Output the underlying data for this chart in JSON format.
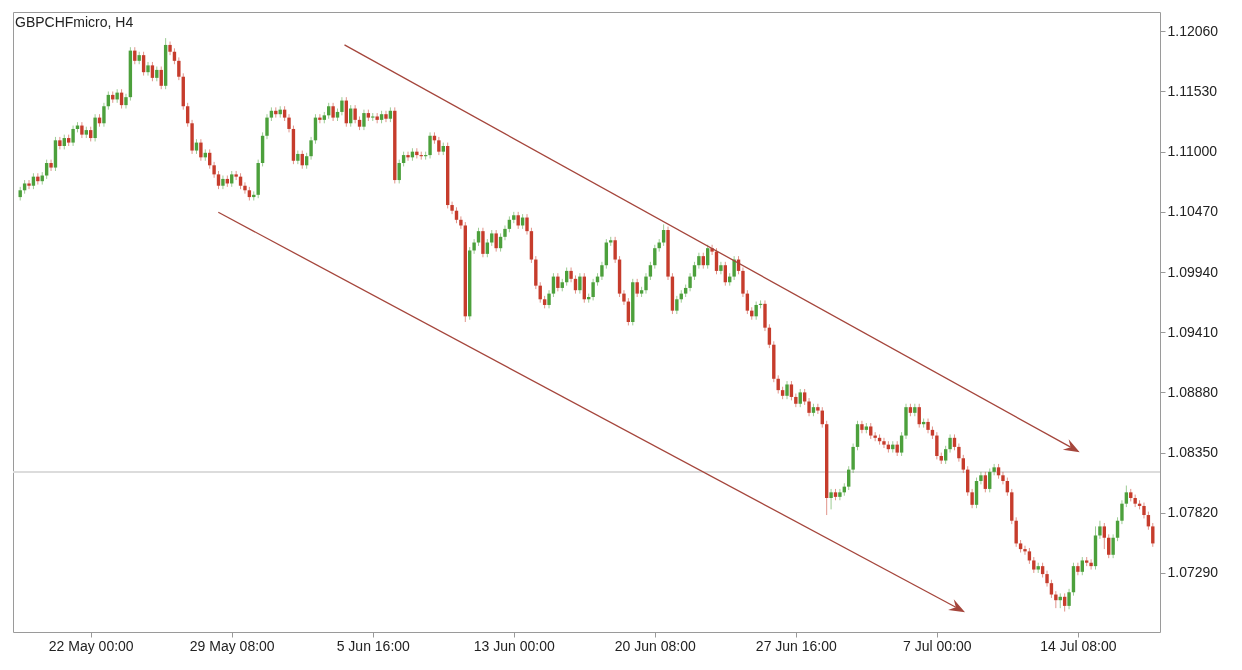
{
  "chart_data": {
    "type": "candlestick",
    "title": "GBPCHFmicro, H4",
    "categories": [
      null,
      null,
      null,
      null,
      null,
      null,
      null,
      null,
      null,
      null,
      null,
      null,
      null,
      null,
      null,
      null,
      "22 May 00:00",
      null,
      null,
      null,
      null,
      null,
      null,
      null,
      null,
      null,
      null,
      null,
      null,
      null,
      null,
      null,
      null,
      null,
      null,
      null,
      null,
      null,
      null,
      null,
      null,
      null,
      null,
      null,
      null,
      null,
      null,
      null,
      "29 May 08:00",
      null,
      null,
      null,
      null,
      null,
      null,
      null,
      null,
      null,
      null,
      null,
      null,
      null,
      null,
      null,
      null,
      null,
      null,
      null,
      null,
      null,
      null,
      null,
      null,
      null,
      null,
      null,
      null,
      null,
      null,
      null,
      "5 Jun 16:00",
      null,
      null,
      null,
      null,
      null,
      null,
      null,
      null,
      null,
      null,
      null,
      null,
      null,
      null,
      null,
      null,
      null,
      null,
      null,
      null,
      null,
      null,
      null,
      null,
      null,
      null,
      null,
      null,
      null,
      null,
      null,
      "13 Jun 00:00",
      null,
      null,
      null,
      null,
      null,
      null,
      null,
      null,
      null,
      null,
      null,
      null,
      null,
      null,
      null,
      null,
      null,
      null,
      null,
      null,
      null,
      null,
      null,
      null,
      null,
      null,
      null,
      null,
      null,
      null,
      null,
      "20 Jun 08:00",
      null,
      null,
      null,
      null,
      null,
      null,
      null,
      null,
      null,
      null,
      null,
      null,
      null,
      null,
      null,
      null,
      null,
      null,
      null,
      null,
      null,
      null,
      null,
      null,
      null,
      null,
      null,
      null,
      null,
      null,
      null,
      "27 Jun 16:00",
      null,
      null,
      null,
      null,
      null,
      null,
      null,
      null,
      null,
      null,
      null,
      null,
      null,
      null,
      null,
      null,
      null,
      null,
      null,
      null,
      null,
      null,
      null,
      null,
      null,
      null,
      null,
      null,
      null,
      null,
      null,
      "7 Jul 00:00",
      null,
      null,
      null,
      null,
      null,
      null,
      null,
      null,
      null,
      null,
      null,
      null,
      null,
      null,
      null,
      null,
      null,
      null,
      null,
      null,
      null,
      null,
      null,
      null,
      null,
      null,
      null,
      null,
      null,
      null,
      null,
      "14 Jul 08:00",
      null,
      null,
      null,
      null,
      null,
      null,
      null,
      null,
      null,
      null,
      null,
      null,
      null,
      null,
      null,
      null,
      null
    ],
    "ohlc": [
      [
        1.106,
        1.1069,
        1.1057,
        1.1066
      ],
      [
        1.1066,
        1.1075,
        1.1063,
        1.1072
      ],
      [
        1.1072,
        1.1075,
        1.1067,
        1.107
      ],
      [
        1.107,
        1.1081,
        1.1067,
        1.1078
      ],
      [
        1.1078,
        1.1081,
        1.1071,
        1.1074
      ],
      [
        1.1074,
        1.1082,
        1.1071,
        1.1079
      ],
      [
        1.1079,
        1.1093,
        1.1076,
        1.109
      ],
      [
        1.109,
        1.1093,
        1.1083,
        1.1086
      ],
      [
        1.1086,
        1.1113,
        1.1083,
        1.111
      ],
      [
        1.111,
        1.1113,
        1.1102,
        1.1105
      ],
      [
        1.1105,
        1.1115,
        1.1102,
        1.1112
      ],
      [
        1.1112,
        1.1115,
        1.1105,
        1.1108
      ],
      [
        1.1108,
        1.1123,
        1.1105,
        1.112
      ],
      [
        1.112,
        1.1126,
        1.1117,
        1.1123
      ],
      [
        1.1123,
        1.1126,
        1.1112,
        1.1115
      ],
      [
        1.1115,
        1.1122,
        1.1112,
        1.1119
      ],
      [
        1.1119,
        1.1122,
        1.1109,
        1.1112
      ],
      [
        1.1112,
        1.1133,
        1.1109,
        1.113
      ],
      [
        1.113,
        1.1133,
        1.1122,
        1.1125
      ],
      [
        1.1125,
        1.1143,
        1.1122,
        1.114
      ],
      [
        1.114,
        1.1153,
        1.1137,
        1.115
      ],
      [
        1.115,
        1.1153,
        1.1143,
        1.1146
      ],
      [
        1.1146,
        1.1155,
        1.1143,
        1.1152
      ],
      [
        1.1152,
        1.1155,
        1.1138,
        1.1141
      ],
      [
        1.1141,
        1.1151,
        1.1138,
        1.1148
      ],
      [
        1.1148,
        1.1192,
        1.1145,
        1.1189
      ],
      [
        1.1189,
        1.1192,
        1.1177,
        1.118
      ],
      [
        1.118,
        1.1188,
        1.1177,
        1.1185
      ],
      [
        1.1185,
        1.1188,
        1.1167,
        1.117
      ],
      [
        1.117,
        1.1179,
        1.1167,
        1.1176
      ],
      [
        1.1176,
        1.1179,
        1.1162,
        1.1165
      ],
      [
        1.1165,
        1.1175,
        1.1162,
        1.1172
      ],
      [
        1.1172,
        1.1175,
        1.1155,
        1.1158
      ],
      [
        1.1158,
        1.12,
        1.1155,
        1.1194
      ],
      [
        1.1194,
        1.1197,
        1.1185,
        1.1188
      ],
      [
        1.1188,
        1.1191,
        1.1177,
        1.118
      ],
      [
        1.118,
        1.1183,
        1.1163,
        1.1166
      ],
      [
        1.1166,
        1.1169,
        1.1137,
        1.114
      ],
      [
        1.114,
        1.1143,
        1.1122,
        1.1125
      ],
      [
        1.1125,
        1.1128,
        1.1098,
        1.1101
      ],
      [
        1.1101,
        1.1111,
        1.1098,
        1.1108
      ],
      [
        1.1108,
        1.1111,
        1.1092,
        1.1095
      ],
      [
        1.1095,
        1.1102,
        1.1092,
        1.1099
      ],
      [
        1.1099,
        1.1102,
        1.1085,
        1.1088
      ],
      [
        1.1088,
        1.1091,
        1.1077,
        1.108
      ],
      [
        1.108,
        1.1083,
        1.1067,
        1.107
      ],
      [
        1.107,
        1.1079,
        1.1067,
        1.1076
      ],
      [
        1.1076,
        1.1079,
        1.1069,
        1.1072
      ],
      [
        1.1072,
        1.1083,
        1.1069,
        1.108
      ],
      [
        1.108,
        1.1083,
        1.1075,
        1.1078
      ],
      [
        1.1078,
        1.1081,
        1.1067,
        1.107
      ],
      [
        1.107,
        1.1073,
        1.1063,
        1.1066
      ],
      [
        1.1066,
        1.1069,
        1.1057,
        1.106
      ],
      [
        1.106,
        1.1065,
        1.1057,
        1.1062
      ],
      [
        1.1062,
        1.1093,
        1.1059,
        1.109
      ],
      [
        1.109,
        1.1117,
        1.1087,
        1.1114
      ],
      [
        1.1114,
        1.1133,
        1.1111,
        1.113
      ],
      [
        1.113,
        1.1139,
        1.1127,
        1.1136
      ],
      [
        1.1136,
        1.1139,
        1.113,
        1.1133
      ],
      [
        1.1133,
        1.114,
        1.113,
        1.1137
      ],
      [
        1.1137,
        1.114,
        1.1127,
        1.113
      ],
      [
        1.113,
        1.1133,
        1.1117,
        1.112
      ],
      [
        1.112,
        1.1123,
        1.1089,
        1.1092
      ],
      [
        1.1092,
        1.1101,
        1.1089,
        1.1098
      ],
      [
        1.1098,
        1.1101,
        1.1085,
        1.1088
      ],
      [
        1.1088,
        1.1099,
        1.1085,
        1.1096
      ],
      [
        1.1096,
        1.1113,
        1.1093,
        1.111
      ],
      [
        1.111,
        1.1133,
        1.1107,
        1.113
      ],
      [
        1.113,
        1.1133,
        1.1125,
        1.1128
      ],
      [
        1.1128,
        1.1135,
        1.1125,
        1.1132
      ],
      [
        1.1132,
        1.1143,
        1.1129,
        1.114
      ],
      [
        1.114,
        1.1143,
        1.1127,
        1.113
      ],
      [
        1.113,
        1.1138,
        1.1127,
        1.1135
      ],
      [
        1.1135,
        1.1148,
        1.1132,
        1.1145
      ],
      [
        1.1145,
        1.1148,
        1.1122,
        1.1125
      ],
      [
        1.1125,
        1.1141,
        1.1122,
        1.1138
      ],
      [
        1.1138,
        1.1141,
        1.1125,
        1.1128
      ],
      [
        1.1128,
        1.1131,
        1.1119,
        1.1122
      ],
      [
        1.1122,
        1.1137,
        1.1119,
        1.1134
      ],
      [
        1.1134,
        1.1137,
        1.1127,
        1.113
      ],
      [
        1.113,
        1.1134,
        1.1127,
        1.1131
      ],
      [
        1.1131,
        1.1134,
        1.1125,
        1.1128
      ],
      [
        1.1128,
        1.1136,
        1.1125,
        1.1133
      ],
      [
        1.1133,
        1.1136,
        1.1126,
        1.1129
      ],
      [
        1.1129,
        1.1139,
        1.1126,
        1.1136
      ],
      [
        1.1136,
        1.1139,
        1.1072,
        1.1075
      ],
      [
        1.1075,
        1.1093,
        1.1072,
        1.109
      ],
      [
        1.109,
        1.11,
        1.1087,
        1.1097
      ],
      [
        1.1097,
        1.11,
        1.1092,
        1.1095
      ],
      [
        1.1095,
        1.1103,
        1.1092,
        1.11
      ],
      [
        1.11,
        1.1103,
        1.1094,
        1.1097
      ],
      [
        1.1097,
        1.11,
        1.1093,
        1.1096
      ],
      [
        1.1096,
        1.11,
        1.1093,
        1.1097
      ],
      [
        1.1097,
        1.1117,
        1.1094,
        1.1114
      ],
      [
        1.1114,
        1.1117,
        1.1107,
        1.111
      ],
      [
        1.111,
        1.1113,
        1.1097,
        1.11
      ],
      [
        1.11,
        1.1108,
        1.1097,
        1.1105
      ],
      [
        1.1105,
        1.1108,
        1.105,
        1.1053
      ],
      [
        1.1053,
        1.1056,
        1.1045,
        1.1048
      ],
      [
        1.1048,
        1.1051,
        1.1037,
        1.104
      ],
      [
        1.104,
        1.1043,
        1.1032,
        1.1035
      ],
      [
        1.1035,
        1.1038,
        1.095,
        1.0955
      ],
      [
        1.0955,
        1.1016,
        1.0952,
        1.1013
      ],
      [
        1.1013,
        1.1023,
        1.101,
        1.102
      ],
      [
        1.102,
        1.1033,
        1.1017,
        1.103
      ],
      [
        1.103,
        1.1033,
        1.1007,
        1.101
      ],
      [
        1.101,
        1.1023,
        1.1007,
        1.102
      ],
      [
        1.102,
        1.1031,
        1.1017,
        1.1028
      ],
      [
        1.1028,
        1.1031,
        1.1012,
        1.1015
      ],
      [
        1.1015,
        1.1028,
        1.1012,
        1.1025
      ],
      [
        1.1025,
        1.1035,
        1.1022,
        1.1032
      ],
      [
        1.1032,
        1.1043,
        1.1029,
        1.104
      ],
      [
        1.104,
        1.1047,
        1.1037,
        1.1044
      ],
      [
        1.1044,
        1.1047,
        1.1032,
        1.1035
      ],
      [
        1.1035,
        1.1045,
        1.1032,
        1.1042
      ],
      [
        1.1042,
        1.1045,
        1.1027,
        1.103
      ],
      [
        1.103,
        1.1033,
        1.1002,
        1.1005
      ],
      [
        1.1005,
        1.1008,
        1.0979,
        1.0982
      ],
      [
        1.0982,
        1.0985,
        1.0967,
        1.097
      ],
      [
        1.097,
        1.0973,
        1.0962,
        1.0965
      ],
      [
        1.0965,
        1.0978,
        1.0962,
        1.0975
      ],
      [
        1.0975,
        1.0993,
        1.0972,
        1.099
      ],
      [
        1.099,
        1.0993,
        1.0977,
        1.098
      ],
      [
        1.098,
        1.0988,
        1.0977,
        1.0985
      ],
      [
        1.0985,
        1.0998,
        1.0982,
        1.0995
      ],
      [
        1.0995,
        1.0998,
        1.0985,
        1.0988
      ],
      [
        1.0988,
        1.0991,
        1.0975,
        1.0978
      ],
      [
        1.0978,
        1.0993,
        1.0975,
        1.099
      ],
      [
        1.099,
        1.0993,
        1.0967,
        1.097
      ],
      [
        1.097,
        1.0975,
        1.0967,
        1.0972
      ],
      [
        1.0972,
        1.0988,
        1.0969,
        1.0985
      ],
      [
        1.0985,
        1.0993,
        1.0982,
        1.099
      ],
      [
        1.099,
        1.1003,
        1.0987,
        1.1
      ],
      [
        1.1,
        1.1023,
        1.0997,
        1.102
      ],
      [
        1.102,
        1.1025,
        1.1017,
        1.1022
      ],
      [
        1.1022,
        1.1025,
        1.1002,
        1.1005
      ],
      [
        1.1005,
        1.1008,
        1.0972,
        1.0975
      ],
      [
        1.0975,
        1.0978,
        1.0965,
        1.0968
      ],
      [
        1.0968,
        1.0971,
        1.0947,
        1.095
      ],
      [
        1.095,
        1.0988,
        1.0947,
        1.0985
      ],
      [
        1.0985,
        1.0988,
        1.0972,
        1.0975
      ],
      [
        1.0975,
        1.0981,
        1.0972,
        1.0978
      ],
      [
        1.0978,
        1.0993,
        1.0975,
        1.099
      ],
      [
        1.099,
        1.1003,
        1.0987,
        1.1
      ],
      [
        1.1,
        1.1018,
        1.0997,
        1.1015
      ],
      [
        1.1015,
        1.1023,
        1.1012,
        1.102
      ],
      [
        1.102,
        1.1036,
        1.1017,
        1.1031
      ],
      [
        1.1031,
        1.1034,
        1.0987,
        1.099
      ],
      [
        1.099,
        1.0993,
        1.0957,
        1.096
      ],
      [
        1.096,
        1.0973,
        1.0957,
        1.097
      ],
      [
        1.097,
        1.0978,
        1.0967,
        1.0975
      ],
      [
        1.0975,
        1.0983,
        1.0972,
        1.098
      ],
      [
        1.098,
        1.0993,
        1.0977,
        1.099
      ],
      [
        1.099,
        1.1003,
        1.0987,
        1.1
      ],
      [
        1.1,
        1.1011,
        1.0997,
        1.1008
      ],
      [
        1.1008,
        1.1011,
        1.0997,
        1.1
      ],
      [
        1.1,
        1.1018,
        1.0997,
        1.1015
      ],
      [
        1.1015,
        1.1018,
        1.1009,
        1.1012
      ],
      [
        1.1012,
        1.1015,
        1.0992,
        1.0995
      ],
      [
        1.0995,
        1.1003,
        1.0992,
        1.1
      ],
      [
        1.1,
        1.1003,
        1.0982,
        1.0985
      ],
      [
        1.0985,
        1.0993,
        1.0982,
        1.099
      ],
      [
        1.099,
        1.1008,
        1.0987,
        1.1005
      ],
      [
        1.1005,
        1.1008,
        1.0992,
        1.0995
      ],
      [
        1.0995,
        1.0998,
        1.0972,
        1.0975
      ],
      [
        1.0975,
        1.0978,
        1.0957,
        1.096
      ],
      [
        1.096,
        1.0963,
        1.0952,
        1.0955
      ],
      [
        1.0955,
        1.0968,
        1.0952,
        1.0965
      ],
      [
        1.0965,
        1.0969,
        1.0962,
        1.0966
      ],
      [
        1.0966,
        1.0969,
        1.0942,
        1.0945
      ],
      [
        1.0945,
        1.0948,
        1.0927,
        1.093
      ],
      [
        1.093,
        1.0933,
        1.0897,
        1.09
      ],
      [
        1.09,
        1.0903,
        1.0887,
        1.089
      ],
      [
        1.089,
        1.0893,
        1.0882,
        1.0885
      ],
      [
        1.0885,
        1.0898,
        1.0882,
        1.0895
      ],
      [
        1.0895,
        1.0898,
        1.0881,
        1.0884
      ],
      [
        1.0884,
        1.0887,
        1.0875,
        1.0878
      ],
      [
        1.0878,
        1.0891,
        1.0875,
        1.0888
      ],
      [
        1.0888,
        1.0891,
        1.0877,
        1.088
      ],
      [
        1.088,
        1.0883,
        1.0867,
        1.087
      ],
      [
        1.087,
        1.0878,
        1.0867,
        1.0875
      ],
      [
        1.0875,
        1.0878,
        1.0869,
        1.0872
      ],
      [
        1.0872,
        1.0875,
        1.0857,
        1.086
      ],
      [
        1.086,
        1.0863,
        1.078,
        1.0795
      ],
      [
        1.0795,
        1.0803,
        1.0785,
        1.08
      ],
      [
        1.08,
        1.0803,
        1.0793,
        1.0796
      ],
      [
        1.0796,
        1.0803,
        1.0793,
        1.08
      ],
      [
        1.08,
        1.0808,
        1.0797,
        1.0805
      ],
      [
        1.0805,
        1.0823,
        1.0802,
        1.082
      ],
      [
        1.082,
        1.0843,
        1.0817,
        1.084
      ],
      [
        1.084,
        1.0863,
        1.0837,
        1.086
      ],
      [
        1.086,
        1.0863,
        1.0852,
        1.0855
      ],
      [
        1.0855,
        1.0861,
        1.0852,
        1.0858
      ],
      [
        1.0858,
        1.0861,
        1.0847,
        1.085
      ],
      [
        1.085,
        1.0853,
        1.0845,
        1.0848
      ],
      [
        1.0848,
        1.0851,
        1.0842,
        1.0845
      ],
      [
        1.0845,
        1.0848,
        1.0839,
        1.0842
      ],
      [
        1.0842,
        1.0845,
        1.0835,
        1.0838
      ],
      [
        1.0838,
        1.0845,
        1.0835,
        1.0842
      ],
      [
        1.0842,
        1.0845,
        1.0832,
        1.0835
      ],
      [
        1.0835,
        1.0853,
        1.0832,
        1.085
      ],
      [
        1.085,
        1.0878,
        1.0847,
        1.0875
      ],
      [
        1.0875,
        1.0878,
        1.0867,
        1.087
      ],
      [
        1.087,
        1.0878,
        1.0867,
        1.0875
      ],
      [
        1.0875,
        1.0878,
        1.0857,
        1.086
      ],
      [
        1.086,
        1.0865,
        1.0857,
        1.0862
      ],
      [
        1.0862,
        1.0865,
        1.0852,
        1.0855
      ],
      [
        1.0855,
        1.0858,
        1.0847,
        1.085
      ],
      [
        1.085,
        1.0853,
        1.0829,
        1.0832
      ],
      [
        1.0832,
        1.0835,
        1.0825,
        1.0828
      ],
      [
        1.0828,
        1.0841,
        1.0825,
        1.0838
      ],
      [
        1.0838,
        1.0851,
        1.0835,
        1.0848
      ],
      [
        1.0848,
        1.0851,
        1.0837,
        1.084
      ],
      [
        1.084,
        1.0843,
        1.0827,
        1.083
      ],
      [
        1.083,
        1.0833,
        1.0817,
        1.082
      ],
      [
        1.082,
        1.0823,
        1.0797,
        1.08
      ],
      [
        1.08,
        1.0803,
        1.0786,
        1.0789
      ],
      [
        1.0789,
        1.0813,
        1.0786,
        1.081
      ],
      [
        1.081,
        1.0818,
        1.0807,
        1.0815
      ],
      [
        1.0815,
        1.0818,
        1.08,
        1.0803
      ],
      [
        1.0803,
        1.0821,
        1.08,
        1.0818
      ],
      [
        1.0818,
        1.0825,
        1.0815,
        1.0822
      ],
      [
        1.0822,
        1.0825,
        1.0812,
        1.0815
      ],
      [
        1.0815,
        1.0818,
        1.0807,
        1.081
      ],
      [
        1.081,
        1.0813,
        1.0797,
        1.08
      ],
      [
        1.08,
        1.0803,
        1.0772,
        1.0775
      ],
      [
        1.0775,
        1.0778,
        1.0752,
        1.0755
      ],
      [
        1.0755,
        1.0758,
        1.0747,
        1.075
      ],
      [
        1.075,
        1.0753,
        1.0745,
        1.0748
      ],
      [
        1.0748,
        1.0751,
        1.0737,
        1.074
      ],
      [
        1.074,
        1.0743,
        1.0729,
        1.0732
      ],
      [
        1.0732,
        1.0738,
        1.0729,
        1.0735
      ],
      [
        1.0735,
        1.0738,
        1.0725,
        1.0728
      ],
      [
        1.0728,
        1.0731,
        1.0717,
        1.072
      ],
      [
        1.072,
        1.0723,
        1.0707,
        1.071
      ],
      [
        1.071,
        1.0713,
        1.0698,
        1.0705
      ],
      [
        1.0705,
        1.0711,
        1.0698,
        1.0708
      ],
      [
        1.0708,
        1.0711,
        1.0695,
        1.07
      ],
      [
        1.07,
        1.0715,
        1.0697,
        1.0712
      ],
      [
        1.0712,
        1.0738,
        1.0709,
        1.0735
      ],
      [
        1.0735,
        1.0738,
        1.0727,
        1.073
      ],
      [
        1.073,
        1.0743,
        1.0727,
        1.074
      ],
      [
        1.074,
        1.0743,
        1.0735,
        1.0738
      ],
      [
        1.0738,
        1.0741,
        1.0732,
        1.0735
      ],
      [
        1.0735,
        1.077,
        1.0732,
        1.0762
      ],
      [
        1.0762,
        1.0775,
        1.0759,
        1.077
      ],
      [
        1.077,
        1.0773,
        1.075,
        1.076
      ],
      [
        1.076,
        1.0763,
        1.0742,
        1.0745
      ],
      [
        1.0745,
        1.0763,
        1.0742,
        1.076
      ],
      [
        1.076,
        1.0778,
        1.0757,
        1.0775
      ],
      [
        1.0775,
        1.0793,
        1.0772,
        1.079
      ],
      [
        1.079,
        1.0806,
        1.0787,
        1.08
      ],
      [
        1.08,
        1.0803,
        1.0792,
        1.0795
      ],
      [
        1.0795,
        1.0798,
        1.0787,
        1.079
      ],
      [
        1.079,
        1.0793,
        1.0785,
        1.0788
      ],
      [
        1.0788,
        1.0791,
        1.0777,
        1.078
      ],
      [
        1.078,
        1.0783,
        1.0767,
        1.077
      ],
      [
        1.077,
        1.0773,
        1.0752,
        1.0755
      ]
    ],
    "colors": [
      "#4ca03c",
      "#4ca03c",
      "#c63c2c",
      "#4ca03c",
      "#c63c2c",
      "#4ca03c",
      "#4ca03c",
      "#c63c2c",
      "#4ca03c",
      "#c63c2c",
      "#4ca03c",
      "#c63c2c",
      "#4ca03c",
      "#4ca03c",
      "#c63c2c",
      "#4ca03c",
      "#c63c2c",
      "#4ca03c",
      "#c63c2c",
      "#4ca03c",
      "#4ca03c",
      "#c63c2c",
      "#4ca03c",
      "#c63c2c",
      "#4ca03c",
      "#4ca03c",
      "#c63c2c",
      "#4ca03c",
      "#c63c2c",
      "#4ca03c",
      "#c63c2c",
      "#4ca03c",
      "#c63c2c",
      "#4ca03c",
      "#c63c2c",
      "#c63c2c",
      "#c63c2c",
      "#c63c2c",
      "#c63c2c",
      "#c63c2c",
      "#4ca03c",
      "#c63c2c",
      "#4ca03c",
      "#c63c2c",
      "#c63c2c",
      "#c63c2c",
      "#4ca03c",
      "#c63c2c",
      "#4ca03c",
      "#c63c2c",
      "#c63c2c",
      "#c63c2c",
      "#c63c2c",
      "#4ca03c",
      "#4ca03c",
      "#4ca03c",
      "#4ca03c",
      "#4ca03c",
      "#c63c2c",
      "#4ca03c",
      "#c63c2c",
      "#c63c2c",
      "#c63c2c",
      "#4ca03c",
      "#c63c2c",
      "#4ca03c",
      "#4ca03c",
      "#4ca03c",
      "#c63c2c",
      "#4ca03c",
      "#4ca03c",
      "#c63c2c",
      "#4ca03c",
      "#4ca03c",
      "#c63c2c",
      "#4ca03c",
      "#c63c2c",
      "#c63c2c",
      "#4ca03c",
      "#c63c2c",
      "#4ca03c",
      "#c63c2c",
      "#4ca03c",
      "#c63c2c",
      "#4ca03c",
      "#c63c2c",
      "#4ca03c",
      "#4ca03c",
      "#c63c2c",
      "#4ca03c",
      "#c63c2c",
      "#c63c2c",
      "#4ca03c",
      "#4ca03c",
      "#c63c2c",
      "#c63c2c",
      "#4ca03c",
      "#c63c2c",
      "#c63c2c",
      "#c63c2c",
      "#c63c2c",
      "#c63c2c",
      "#4ca03c",
      "#4ca03c",
      "#4ca03c",
      "#c63c2c",
      "#4ca03c",
      "#4ca03c",
      "#c63c2c",
      "#4ca03c",
      "#4ca03c",
      "#4ca03c",
      "#4ca03c",
      "#c63c2c",
      "#4ca03c",
      "#c63c2c",
      "#c63c2c",
      "#c63c2c",
      "#c63c2c",
      "#c63c2c",
      "#4ca03c",
      "#4ca03c",
      "#c63c2c",
      "#4ca03c",
      "#4ca03c",
      "#c63c2c",
      "#c63c2c",
      "#4ca03c",
      "#c63c2c",
      "#4ca03c",
      "#4ca03c",
      "#4ca03c",
      "#4ca03c",
      "#4ca03c",
      "#4ca03c",
      "#c63c2c",
      "#c63c2c",
      "#c63c2c",
      "#c63c2c",
      "#4ca03c",
      "#c63c2c",
      "#4ca03c",
      "#4ca03c",
      "#4ca03c",
      "#4ca03c",
      "#4ca03c",
      "#4ca03c",
      "#c63c2c",
      "#c63c2c",
      "#4ca03c",
      "#4ca03c",
      "#4ca03c",
      "#4ca03c",
      "#4ca03c",
      "#4ca03c",
      "#c63c2c",
      "#4ca03c",
      "#c63c2c",
      "#c63c2c",
      "#4ca03c",
      "#c63c2c",
      "#4ca03c",
      "#4ca03c",
      "#c63c2c",
      "#c63c2c",
      "#c63c2c",
      "#c63c2c",
      "#4ca03c",
      "#4ca03c",
      "#c63c2c",
      "#c63c2c",
      "#c63c2c",
      "#c63c2c",
      "#c63c2c",
      "#4ca03c",
      "#c63c2c",
      "#c63c2c",
      "#4ca03c",
      "#c63c2c",
      "#c63c2c",
      "#4ca03c",
      "#c63c2c",
      "#c63c2c",
      "#c63c2c",
      "#4ca03c",
      "#c63c2c",
      "#4ca03c",
      "#4ca03c",
      "#4ca03c",
      "#4ca03c",
      "#4ca03c",
      "#c63c2c",
      "#4ca03c",
      "#c63c2c",
      "#c63c2c",
      "#c63c2c",
      "#c63c2c",
      "#c63c2c",
      "#4ca03c",
      "#c63c2c",
      "#4ca03c",
      "#4ca03c",
      "#c63c2c",
      "#4ca03c",
      "#c63c2c",
      "#4ca03c",
      "#c63c2c",
      "#c63c2c",
      "#c63c2c",
      "#c63c2c",
      "#4ca03c",
      "#4ca03c",
      "#c63c2c",
      "#c63c2c",
      "#c63c2c",
      "#c63c2c",
      "#c63c2c",
      "#4ca03c",
      "#4ca03c",
      "#c63c2c",
      "#4ca03c",
      "#4ca03c",
      "#c63c2c",
      "#c63c2c",
      "#c63c2c",
      "#c63c2c",
      "#c63c2c",
      "#c63c2c",
      "#c63c2c",
      "#c63c2c",
      "#c63c2c",
      "#4ca03c",
      "#c63c2c",
      "#c63c2c",
      "#c63c2c",
      "#c63c2c",
      "#4ca03c",
      "#c63c2c",
      "#4ca03c",
      "#4ca03c",
      "#c63c2c",
      "#4ca03c",
      "#c63c2c",
      "#c63c2c",
      "#4ca03c",
      "#4ca03c",
      "#c63c2c",
      "#c63c2c",
      "#4ca03c",
      "#4ca03c",
      "#4ca03c",
      "#4ca03c",
      "#c63c2c",
      "#c63c2c",
      "#c63c2c",
      "#c63c2c",
      "#c63c2c",
      "#c63c2c"
    ],
    "ylim": [
      1.0677,
      1.1223
    ],
    "yticks": [
      {
        "value": 1.0729,
        "label": "1.07290"
      },
      {
        "value": 1.0782,
        "label": "1.07820"
      },
      {
        "value": 1.0835,
        "label": "1.08350"
      },
      {
        "value": 1.0888,
        "label": "1.08880"
      },
      {
        "value": 1.0941,
        "label": "1.09410"
      },
      {
        "value": 1.0994,
        "label": "1.09940"
      },
      {
        "value": 1.1047,
        "label": "1.10470"
      },
      {
        "value": 1.11,
        "label": "1.11000"
      },
      {
        "value": 1.1153,
        "label": "1.11530"
      },
      {
        "value": 1.1206,
        "label": "1.12060"
      }
    ],
    "ref_lines": [
      {
        "axis": "y",
        "value": 1.0818,
        "color": "#dcdcdc"
      }
    ]
  }
}
